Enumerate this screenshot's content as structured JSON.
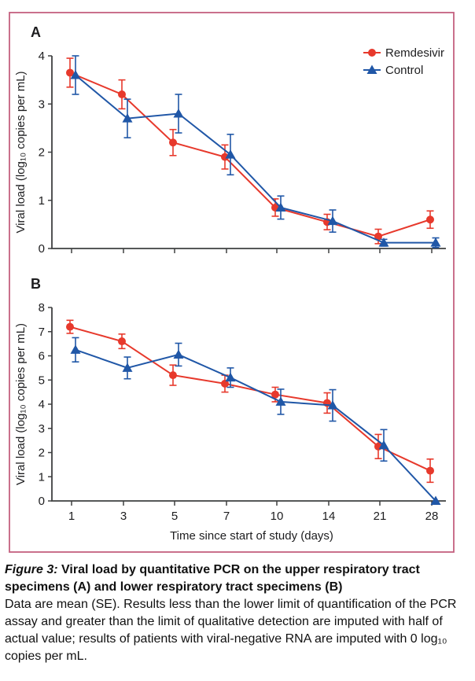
{
  "figure": {
    "border_color": "#c4617f",
    "axis_color": "#3f4041",
    "text_color": "#1d1d1f",
    "accent_red": "#e7392c",
    "accent_blue": "#2057a7"
  },
  "chart_data": [
    {
      "type": "line",
      "panel_label": "A",
      "panel_description": "Upper respiratory tract specimens",
      "x": [
        1,
        3,
        5,
        7,
        10,
        14,
        21,
        28
      ],
      "xlabel": "Time since start of study (days)",
      "ylabel": "Viral load (log₁₀ copies per mL)",
      "ylim": [
        0,
        4
      ],
      "yticks": [
        0,
        1,
        2,
        3,
        4
      ],
      "error_bar_type": "SE",
      "grid": false,
      "legend": true,
      "legend_position": "top-right",
      "series": [
        {
          "name": "Remdesivir",
          "marker": "circle",
          "color": "#e7392c",
          "values": [
            3.65,
            3.2,
            2.2,
            1.9,
            0.85,
            0.55,
            0.25,
            0.6
          ],
          "se": [
            0.3,
            0.3,
            0.27,
            0.25,
            0.18,
            0.16,
            0.15,
            0.18
          ]
        },
        {
          "name": "Control",
          "marker": "triangle",
          "color": "#2057a7",
          "values": [
            3.6,
            2.7,
            2.8,
            1.95,
            0.85,
            0.57,
            0.12,
            0.12
          ],
          "se": [
            0.4,
            0.4,
            0.4,
            0.42,
            0.24,
            0.23,
            0.07,
            0.1
          ]
        }
      ]
    },
    {
      "type": "line",
      "panel_label": "B",
      "panel_description": "Lower respiratory tract specimens",
      "x": [
        1,
        3,
        5,
        7,
        10,
        14,
        21,
        28
      ],
      "xlabel": "Time since start of study (days)",
      "ylabel": "Viral load (log₁₀ copies per mL)",
      "ylim": [
        0,
        8
      ],
      "yticks": [
        0,
        1,
        2,
        3,
        4,
        5,
        6,
        7,
        8
      ],
      "error_bar_type": "SE",
      "grid": false,
      "legend": false,
      "series": [
        {
          "name": "Remdesivir",
          "marker": "circle",
          "color": "#e7392c",
          "values": [
            7.2,
            6.6,
            5.2,
            4.85,
            4.4,
            4.05,
            2.25,
            1.25
          ],
          "se": [
            0.27,
            0.3,
            0.42,
            0.35,
            0.3,
            0.42,
            0.5,
            0.48
          ]
        },
        {
          "name": "Control",
          "marker": "triangle",
          "color": "#2057a7",
          "values": [
            6.25,
            5.5,
            6.05,
            5.1,
            4.1,
            3.95,
            2.3,
            0.0
          ],
          "se": [
            0.5,
            0.45,
            0.47,
            0.4,
            0.52,
            0.65,
            0.65,
            0
          ]
        }
      ]
    }
  ],
  "caption": {
    "figure_label": "Figure 3:",
    "title": "Viral load by quantitative PCR on the upper respiratory tract specimens (A) and lower respiratory tract specimens (B)",
    "body": "Data are mean (SE). Results less than the lower limit of quantification of the PCR assay and greater than the limit of qualitative detection are imputed with half of actual value; results of patients with viral-negative RNA are imputed with 0 log₁₀ copies per mL."
  }
}
